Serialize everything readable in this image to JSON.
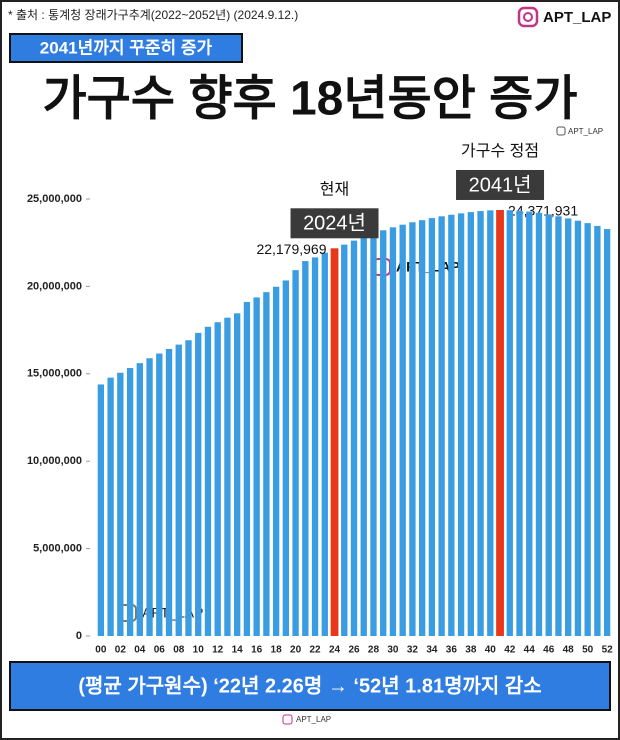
{
  "chart_data": {
    "type": "bar",
    "source": "* 출처 : 통계청 장래가구추계(2022~2052년) (2024.9.12.)",
    "brand": "APT_LAP",
    "subtitle": "2041년까지 꾸준히 증가",
    "title": "가구수 향후 18년동안 증가",
    "footer": "(평균 가구원수) ‘22년 2.26명 → ‘52년 1.81명까지 감소",
    "categories": [
      "00",
      null,
      "02",
      null,
      "04",
      null,
      "06",
      null,
      "08",
      null,
      "10",
      null,
      "12",
      null,
      "14",
      null,
      "16",
      null,
      "18",
      null,
      "20",
      null,
      "22",
      null,
      "24",
      null,
      "26",
      null,
      "28",
      null,
      "30",
      null,
      "32",
      null,
      "34",
      null,
      "36",
      null,
      "38",
      null,
      "40",
      null,
      "42",
      null,
      "44",
      null,
      "46",
      null,
      "48",
      null,
      "50",
      null,
      "52"
    ],
    "values": [
      14390000,
      14780000,
      15060000,
      15330000,
      15610000,
      15890000,
      16160000,
      16420000,
      16670000,
      16920000,
      17340000,
      17690000,
      17950000,
      18210000,
      18460000,
      19110000,
      19370000,
      19670000,
      19980000,
      20340000,
      20930000,
      21450000,
      21660000,
      21930000,
      22179969,
      22390000,
      22620000,
      22840000,
      23030000,
      23210000,
      23380000,
      23530000,
      23670000,
      23790000,
      23910000,
      24010000,
      24100000,
      24180000,
      24250000,
      24310000,
      24350000,
      24371931,
      24360000,
      24330000,
      24280000,
      24210000,
      24120000,
      24010000,
      23890000,
      23760000,
      23620000,
      23460000,
      23280000
    ],
    "value_labels": [
      null,
      null,
      null,
      null,
      null,
      null,
      null,
      null,
      null,
      null,
      null,
      null,
      null,
      null,
      null,
      null,
      null,
      null,
      null,
      null,
      null,
      null,
      null,
      null,
      "22,179,969",
      null,
      null,
      null,
      null,
      null,
      null,
      null,
      null,
      null,
      null,
      null,
      null,
      null,
      null,
      null,
      null,
      "24,371,931",
      null,
      null,
      null,
      null,
      null,
      null,
      null,
      null,
      null,
      null,
      null
    ],
    "colors": [
      "#3a9de2",
      "#3a9de2",
      "#3a9de2",
      "#3a9de2",
      "#3a9de2",
      "#3a9de2",
      "#3a9de2",
      "#3a9de2",
      "#3a9de2",
      "#3a9de2",
      "#3a9de2",
      "#3a9de2",
      "#3a9de2",
      "#3a9de2",
      "#3a9de2",
      "#3a9de2",
      "#3a9de2",
      "#3a9de2",
      "#3a9de2",
      "#3a9de2",
      "#3a9de2",
      "#3a9de2",
      "#3a9de2",
      "#3a9de2",
      "#e8381c",
      "#3a9de2",
      "#3a9de2",
      "#3a9de2",
      "#3a9de2",
      "#3a9de2",
      "#3a9de2",
      "#3a9de2",
      "#3a9de2",
      "#3a9de2",
      "#3a9de2",
      "#3a9de2",
      "#3a9de2",
      "#3a9de2",
      "#3a9de2",
      "#3a9de2",
      "#3a9de2",
      "#e8381c",
      "#3a9de2",
      "#3a9de2",
      "#3a9de2",
      "#3a9de2",
      "#3a9de2",
      "#3a9de2",
      "#3a9de2",
      "#3a9de2",
      "#3a9de2",
      "#3a9de2",
      "#3a9de2"
    ],
    "annotations": [
      {
        "title": "현재",
        "label": "2024년",
        "x": "24"
      },
      {
        "title": "가구수 정점",
        "label": "2041년",
        "x": null
      }
    ],
    "ylim": [
      0,
      25000000
    ],
    "yticks": [
      0,
      {
        "value": 5000000,
        "label": "5,000,000"
      },
      {
        "value": 10000000,
        "label": "10,000,000"
      },
      {
        "value": 15000000,
        "label": "15,000,000"
      },
      {
        "value": 20000000,
        "label": "20,000,000"
      },
      {
        "value": 25000000,
        "label": "25,000,000"
      }
    ],
    "grid": false
  }
}
